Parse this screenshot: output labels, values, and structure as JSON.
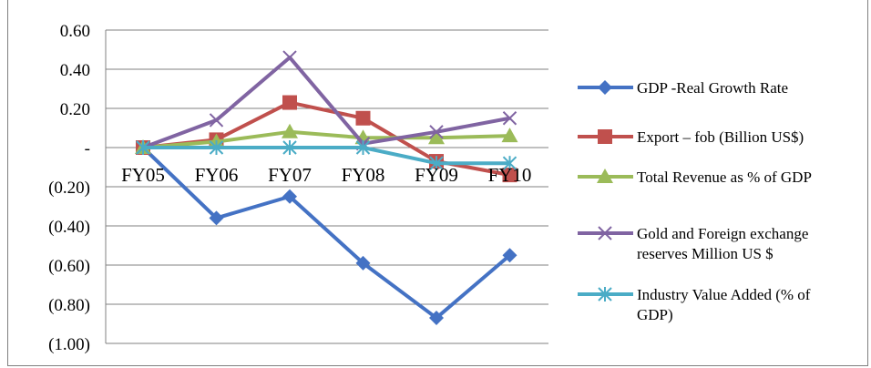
{
  "chart_data": {
    "type": "line",
    "title": "",
    "xlabel": "",
    "ylabel": "",
    "categories": [
      "FY05",
      "FY06",
      "FY07",
      "FY08",
      "FY09",
      "FY10"
    ],
    "ylim": [
      -1.0,
      0.6
    ],
    "ytick_values": [
      0.6,
      0.4,
      0.2,
      0.0,
      -0.2,
      -0.4,
      -0.6,
      -0.8,
      -1.0
    ],
    "ytick_labels": [
      "0.60",
      "0.40",
      "0.20",
      "-",
      "(0.20)",
      "(0.40)",
      "(0.60)",
      "(0.80)",
      "(1.00)"
    ],
    "grid": true,
    "legend_position": "right",
    "series": [
      {
        "name": "GDP -Real Growth Rate",
        "color": "#4472C4",
        "marker": "diamond",
        "values": [
          0.0,
          -0.36,
          -0.25,
          -0.59,
          -0.87,
          -0.55
        ]
      },
      {
        "name": "Export – fob (Billion US$)",
        "color": "#C0504D",
        "marker": "square",
        "values": [
          0.0,
          0.04,
          0.23,
          0.15,
          -0.07,
          -0.14
        ]
      },
      {
        "name": "Total Revenue as % of GDP",
        "color": "#9BBB59",
        "marker": "triangle",
        "values": [
          0.0,
          0.03,
          0.08,
          0.05,
          0.05,
          0.06
        ]
      },
      {
        "name": "Gold and Foreign exchange reserves Million US $",
        "color": "#8064A2",
        "marker": "x",
        "values": [
          0.0,
          0.14,
          0.46,
          0.02,
          0.08,
          0.15
        ]
      },
      {
        "name": "Industry Value Added (% of GDP)",
        "color": "#4BACC6",
        "marker": "asterisk",
        "values": [
          0.0,
          0.0,
          0.0,
          0.0,
          -0.08,
          -0.08
        ]
      }
    ]
  }
}
